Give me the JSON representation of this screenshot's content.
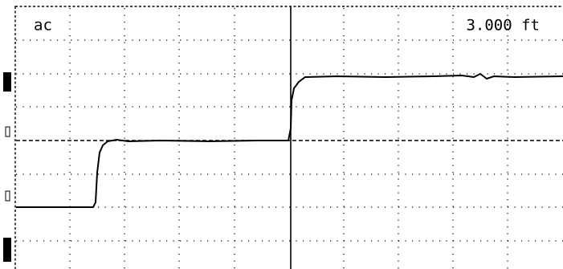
{
  "screen": {
    "mode": "ac",
    "cursor_readout": "3.000 ft"
  }
}
